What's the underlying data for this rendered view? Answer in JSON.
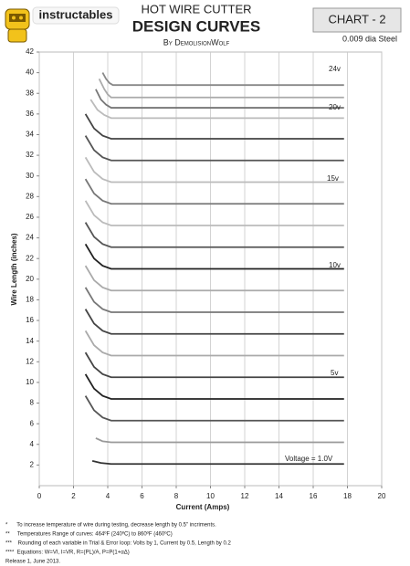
{
  "header": {
    "logo": "instructables",
    "title": "HOT WIRE CUTTER",
    "subtitle": "DESIGN CURVES",
    "author": "By DemolisionWolf",
    "chart_label": "CHART   - 2",
    "material": "0.009 dia Steel"
  },
  "chart_data": {
    "type": "line",
    "x_label": "Current (Amps)",
    "y_label": "Wire Length (inches)",
    "xlim": [
      0,
      20
    ],
    "xticks": [
      0,
      2,
      4,
      6,
      8,
      10,
      12,
      14,
      16,
      18,
      20
    ],
    "ylim": [
      0,
      42
    ],
    "yticks": [
      2,
      4,
      6,
      8,
      10,
      12,
      14,
      16,
      18,
      20,
      22,
      24,
      26,
      28,
      30,
      32,
      34,
      36,
      38,
      40,
      42
    ],
    "grid": "x",
    "annotations": [
      "24v",
      "20v",
      "15v",
      "10v",
      "5v",
      "Voltage = 1.0V"
    ],
    "series": [
      {
        "color": "#333333",
        "x": [
          3.1,
          3.6,
          4.2,
          17.8
        ],
        "values": [
          2.4,
          2.2,
          2.1,
          2.1
        ]
      },
      {
        "color": "#999999",
        "x": [
          3.3,
          3.7,
          4.2,
          17.8
        ],
        "values": [
          4.6,
          4.3,
          4.2,
          4.2
        ]
      },
      {
        "color": "#555555",
        "x": [
          2.7,
          3.2,
          3.7,
          4.2,
          17.8
        ],
        "values": [
          8.7,
          7.3,
          6.6,
          6.3,
          6.3
        ]
      },
      {
        "color": "#222222",
        "x": [
          2.7,
          3.2,
          3.7,
          4.2,
          17.8
        ],
        "values": [
          10.8,
          9.4,
          8.7,
          8.4,
          8.4
        ]
      },
      {
        "color": "#444444",
        "x": [
          2.7,
          3.2,
          3.7,
          4.2,
          17.8
        ],
        "values": [
          12.9,
          11.5,
          10.8,
          10.5,
          10.5
        ]
      },
      {
        "color": "#aaaaaa",
        "x": [
          2.7,
          3.2,
          3.7,
          4.2,
          17.8
        ],
        "values": [
          15.0,
          13.6,
          12.9,
          12.6,
          12.6
        ]
      },
      {
        "color": "#444444",
        "x": [
          2.7,
          3.2,
          3.7,
          4.2,
          17.8
        ],
        "values": [
          17.1,
          15.7,
          15.0,
          14.7,
          14.7
        ]
      },
      {
        "color": "#777777",
        "x": [
          2.7,
          3.2,
          3.7,
          4.2,
          17.8
        ],
        "values": [
          19.2,
          17.8,
          17.1,
          16.8,
          16.8
        ]
      },
      {
        "color": "#aaaaaa",
        "x": [
          2.7,
          3.2,
          3.7,
          4.2,
          17.8
        ],
        "values": [
          21.3,
          19.9,
          19.2,
          18.9,
          18.9
        ]
      },
      {
        "color": "#222222",
        "x": [
          2.7,
          3.2,
          3.7,
          4.2,
          17.8
        ],
        "values": [
          23.4,
          22.0,
          21.3,
          21.0,
          21.0
        ]
      },
      {
        "color": "#555555",
        "x": [
          2.7,
          3.2,
          3.7,
          4.2,
          17.8
        ],
        "values": [
          25.5,
          24.1,
          23.4,
          23.1,
          23.1
        ]
      },
      {
        "color": "#bbbbbb",
        "x": [
          2.7,
          3.2,
          3.7,
          4.2,
          17.8
        ],
        "values": [
          27.6,
          26.2,
          25.5,
          25.2,
          25.2
        ]
      },
      {
        "color": "#777777",
        "x": [
          2.7,
          3.2,
          3.7,
          4.2,
          17.8
        ],
        "values": [
          29.7,
          28.3,
          27.6,
          27.3,
          27.3
        ]
      },
      {
        "color": "#bbbbbb",
        "x": [
          2.7,
          3.2,
          3.7,
          4.2,
          17.8
        ],
        "values": [
          31.8,
          30.4,
          29.7,
          29.4,
          29.4
        ]
      },
      {
        "color": "#555555",
        "x": [
          2.7,
          3.2,
          3.7,
          4.2,
          17.8
        ],
        "values": [
          33.9,
          32.5,
          31.8,
          31.5,
          31.5
        ]
      },
      {
        "color": "#444444",
        "x": [
          2.7,
          3.2,
          3.7,
          4.2,
          17.8
        ],
        "values": [
          36.0,
          34.6,
          33.9,
          33.6,
          33.6
        ]
      },
      {
        "color": "#bbbbbb",
        "x": [
          3.0,
          3.4,
          3.8,
          4.2,
          17.8
        ],
        "values": [
          37.4,
          36.4,
          35.9,
          35.6,
          35.6
        ]
      },
      {
        "color": "#777777",
        "x": [
          3.3,
          3.6,
          3.9,
          4.2,
          17.8
        ],
        "values": [
          38.4,
          37.4,
          36.9,
          36.6,
          36.6
        ]
      },
      {
        "color": "#aaaaaa",
        "x": [
          3.5,
          3.8,
          4.0,
          4.2,
          17.8
        ],
        "values": [
          39.4,
          38.4,
          37.9,
          37.6,
          37.6
        ]
      },
      {
        "color": "#888888",
        "x": [
          3.7,
          3.9,
          4.1,
          4.3,
          17.8
        ],
        "values": [
          40.0,
          39.4,
          39.0,
          38.8,
          38.8
        ]
      }
    ]
  },
  "footnotes": [
    "*      To increase temperature of wire during testing, decrease length by 0.5\" incriments.",
    "**     Temperatures Range of curves: 464ºF (240ºC) to 860ºF (460ºC)",
    "***    Rounding of each variable in Trial & Error loop: Volts by 1, Current by 0.5, Length by 0.2",
    "****  Equations: W=VI, I=VR, R=(PL)/A, P=P(1+αΔ)",
    "Release 1, June 2013."
  ]
}
